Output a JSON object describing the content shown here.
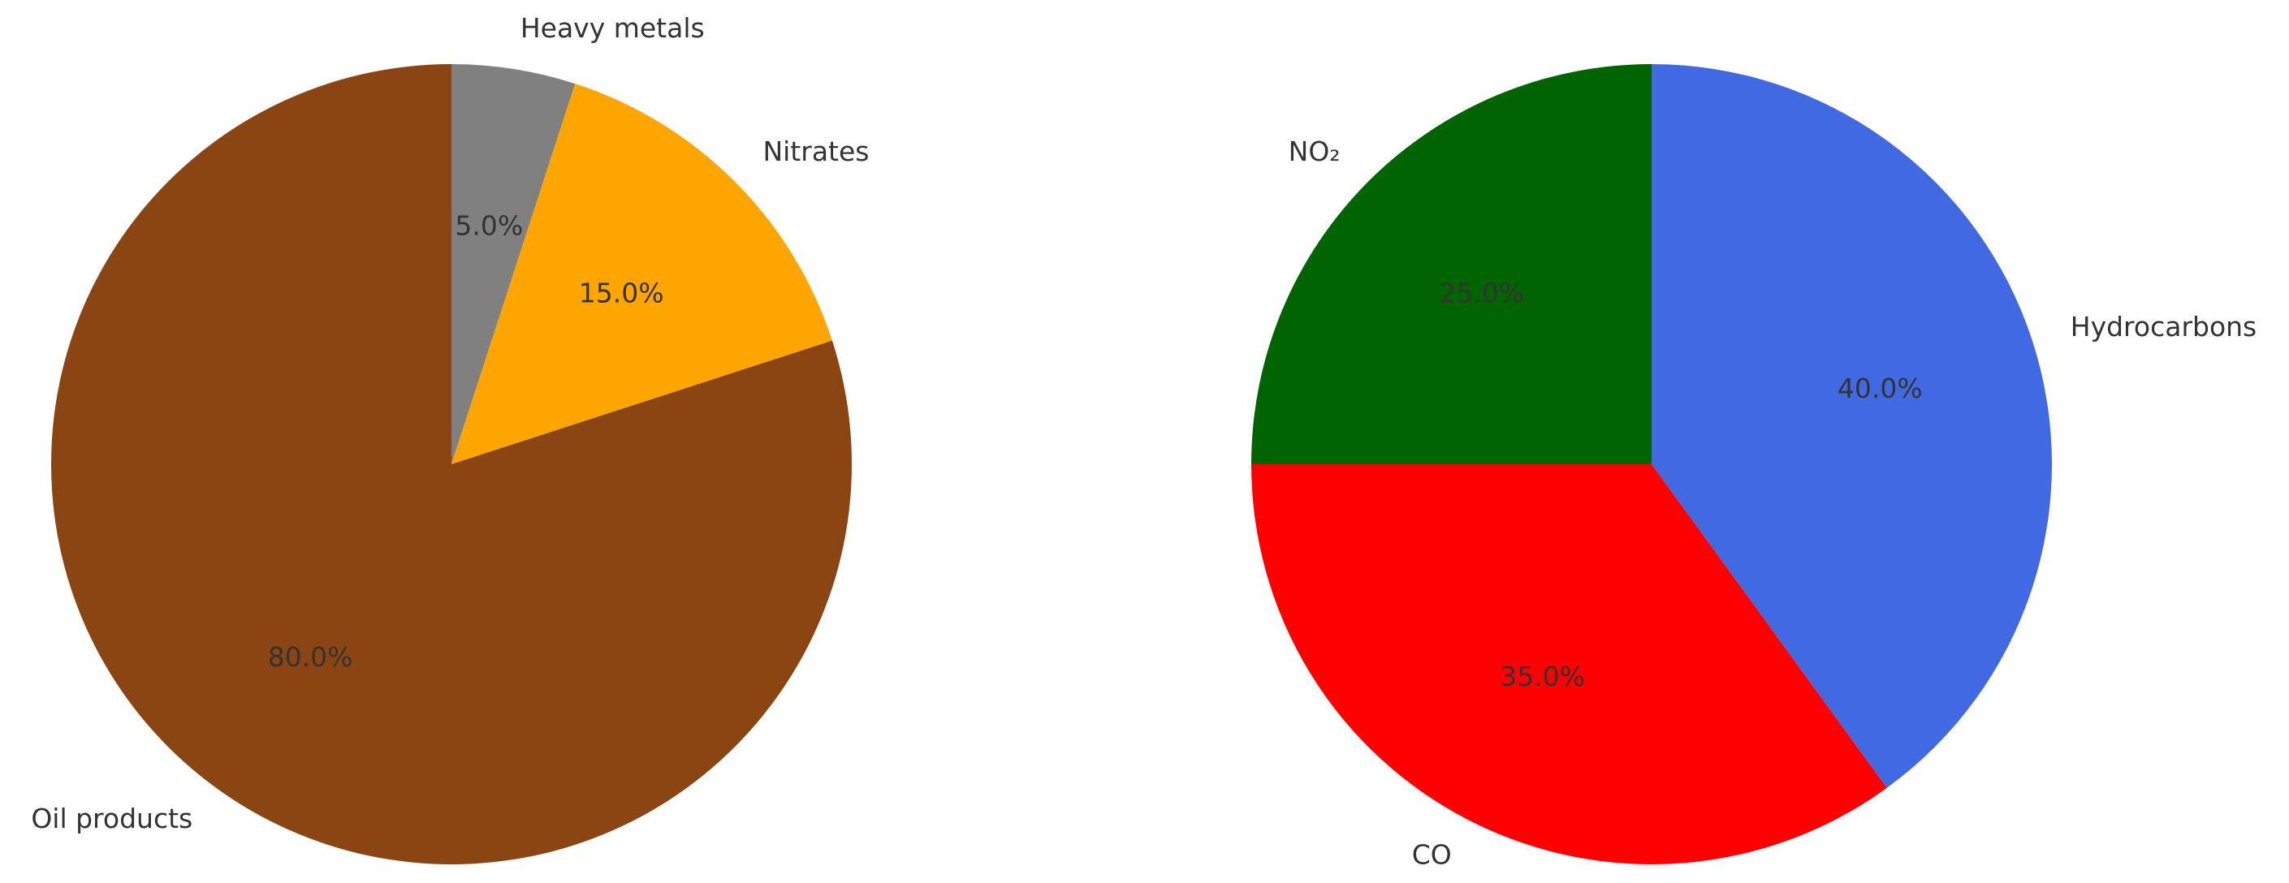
{
  "chart_data": [
    {
      "type": "pie",
      "categories": [
        "Heavy metals",
        "Nitrates",
        "Oil products"
      ],
      "values": [
        5,
        15,
        80
      ],
      "value_labels": [
        "5.0%",
        "15.0%",
        "80.0%"
      ],
      "colors": [
        "#808080",
        "#ffa500",
        "#8b4513"
      ],
      "start_angle": 90,
      "direction": "clockwise"
    },
    {
      "type": "pie",
      "categories": [
        "Hydrocarbons",
        "CO",
        "NO₂"
      ],
      "values": [
        40,
        35,
        25
      ],
      "value_labels": [
        "40.0%",
        "35.0%",
        "25.0%"
      ],
      "colors": [
        "#4169e1",
        "#ff0000",
        "#006400"
      ],
      "start_angle": 90,
      "direction": "clockwise"
    }
  ]
}
